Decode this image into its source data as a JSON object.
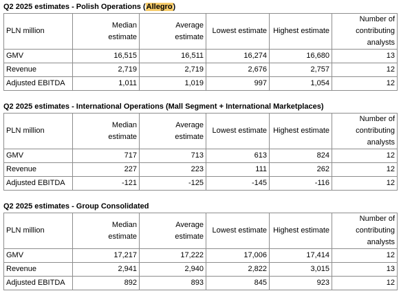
{
  "sections": [
    {
      "title_prefix": "Q2 2025 estimates - Polish Operations (",
      "title_highlight": "Allegro",
      "title_suffix": ")",
      "header": {
        "c0": "PLN million",
        "c1_l1": "Median",
        "c1_l2": "estimate",
        "c2_l1": "Average",
        "c2_l2": "estimate",
        "c3": "Lowest estimate",
        "c4": "Highest estimate",
        "c5_l1": "Number of",
        "c5_l2": "contributing",
        "c5_l3": "analysts"
      },
      "rows": [
        {
          "label": "GMV",
          "median": "16,515",
          "average": "16,511",
          "lowest": "16,274",
          "highest": "16,680",
          "analysts": "13"
        },
        {
          "label": "Revenue",
          "median": "2,719",
          "average": "2,719",
          "lowest": "2,676",
          "highest": "2,757",
          "analysts": "12"
        },
        {
          "label": "Adjusted EBITDA",
          "median": "1,011",
          "average": "1,019",
          "lowest": "997",
          "highest": "1,054",
          "analysts": "12"
        }
      ]
    },
    {
      "title": "Q2 2025 estimates - International Operations (Mall Segment + International Marketplaces)",
      "header": {
        "c0": "PLN million",
        "c1_l1": "Median",
        "c1_l2": "estimate",
        "c2_l1": "Average",
        "c2_l2": "estimate",
        "c3": "Lowest estimate",
        "c4": "Highest estimate",
        "c5_l1": "Number of",
        "c5_l2": "contributing",
        "c5_l3": "analysts"
      },
      "rows": [
        {
          "label": "GMV",
          "median": "717",
          "average": "713",
          "lowest": "613",
          "highest": "824",
          "analysts": "12"
        },
        {
          "label": "Revenue",
          "median": "227",
          "average": "223",
          "lowest": "111",
          "highest": "262",
          "analysts": "12"
        },
        {
          "label": "Adjusted EBITDA",
          "median": "-121",
          "average": "-125",
          "lowest": "-145",
          "highest": "-116",
          "analysts": "12"
        }
      ]
    },
    {
      "title": "Q2 2025 estimates - Group Consolidated",
      "header": {
        "c0": "PLN million",
        "c1_l1": "Median",
        "c1_l2": "estimate",
        "c2_l1": "Average",
        "c2_l2": "estimate",
        "c3": "Lowest estimate",
        "c4": "Highest estimate",
        "c5_l1": "Number of",
        "c5_l2": "contributing",
        "c5_l3": "analysts"
      },
      "rows": [
        {
          "label": "GMV",
          "median": "17,217",
          "average": "17,222",
          "lowest": "17,006",
          "highest": "17,414",
          "analysts": "12"
        },
        {
          "label": "Revenue",
          "median": "2,941",
          "average": "2,940",
          "lowest": "2,822",
          "highest": "3,015",
          "analysts": "13"
        },
        {
          "label": "Adjusted EBITDA",
          "median": "892",
          "average": "893",
          "lowest": "845",
          "highest": "923",
          "analysts": "12"
        }
      ]
    }
  ]
}
